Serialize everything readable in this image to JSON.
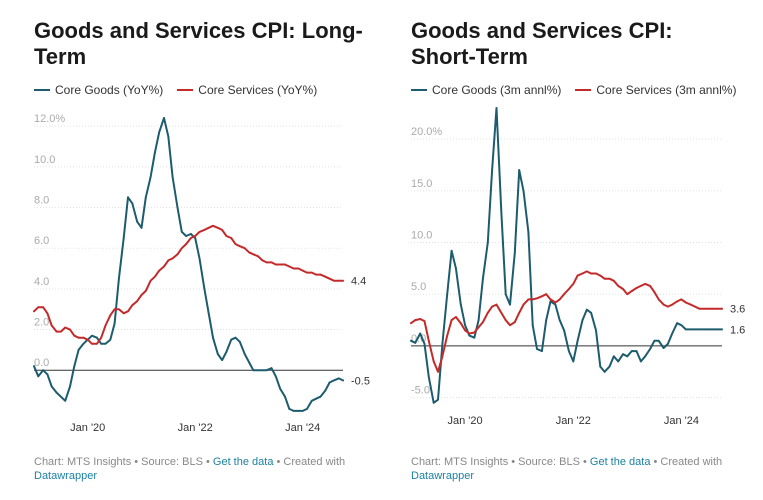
{
  "chart_data": [
    {
      "type": "line",
      "title": "Goods and Services CPI: Long-Term",
      "x": [
        2019.0,
        2019.08,
        2019.17,
        2019.25,
        2019.33,
        2019.42,
        2019.5,
        2019.58,
        2019.67,
        2019.75,
        2019.83,
        2019.92,
        2020.0,
        2020.08,
        2020.17,
        2020.25,
        2020.33,
        2020.42,
        2020.5,
        2020.58,
        2020.67,
        2020.75,
        2020.83,
        2020.92,
        2021.0,
        2021.08,
        2021.17,
        2021.25,
        2021.33,
        2021.42,
        2021.5,
        2021.58,
        2021.67,
        2021.75,
        2021.83,
        2021.92,
        2022.0,
        2022.08,
        2022.17,
        2022.25,
        2022.33,
        2022.42,
        2022.5,
        2022.58,
        2022.67,
        2022.75,
        2022.83,
        2022.92,
        2023.0,
        2023.08,
        2023.17,
        2023.25,
        2023.33,
        2023.42,
        2023.5,
        2023.58,
        2023.67,
        2023.75,
        2023.83,
        2023.92,
        2024.0,
        2024.08,
        2024.17,
        2024.25,
        2024.33,
        2024.42,
        2024.5,
        2024.58,
        2024.67,
        2024.75
      ],
      "series": [
        {
          "name": "Core Goods (YoY%)",
          "color": "#1d5c6e",
          "values": [
            0.2,
            -0.3,
            0.0,
            -0.2,
            -0.8,
            -1.1,
            -1.3,
            -1.5,
            -0.8,
            0.2,
            1.0,
            1.3,
            1.5,
            1.7,
            1.6,
            1.3,
            1.3,
            1.5,
            2.3,
            4.5,
            6.5,
            8.5,
            8.2,
            7.3,
            7.0,
            8.5,
            9.5,
            10.7,
            11.7,
            12.4,
            11.5,
            9.5,
            8.0,
            6.8,
            6.6,
            6.7,
            6.5,
            5.5,
            4.0,
            2.8,
            1.6,
            0.8,
            0.5,
            0.9,
            1.5,
            1.6,
            1.4,
            0.8,
            0.4,
            0.0,
            0.0,
            0.0,
            0.0,
            0.1,
            -0.3,
            -0.9,
            -1.3,
            -1.9,
            -2.0,
            -2.0,
            -2.0,
            -1.9,
            -1.5,
            -1.4,
            -1.3,
            -1.0,
            -0.6,
            -0.5,
            -0.4,
            -0.5
          ]
        },
        {
          "name": "Core Services (YoY%)",
          "color": "#c42a2a",
          "values": [
            2.9,
            3.1,
            3.1,
            2.8,
            2.2,
            1.9,
            1.9,
            2.1,
            2.0,
            1.7,
            1.6,
            1.6,
            1.5,
            1.3,
            1.3,
            1.6,
            2.2,
            2.7,
            3.0,
            3.0,
            2.8,
            2.9,
            3.2,
            3.4,
            3.7,
            3.9,
            4.4,
            4.6,
            4.9,
            5.1,
            5.4,
            5.5,
            5.7,
            6.0,
            6.2,
            6.5,
            6.6,
            6.8,
            6.9,
            7.0,
            7.1,
            7.0,
            6.9,
            6.6,
            6.5,
            6.2,
            6.1,
            6.0,
            5.8,
            5.7,
            5.6,
            5.4,
            5.3,
            5.3,
            5.2,
            5.2,
            5.2,
            5.1,
            5.0,
            5.0,
            4.9,
            4.8,
            4.8,
            4.7,
            4.7,
            4.6,
            4.5,
            4.4,
            4.4,
            4.4
          ]
        }
      ],
      "ylim": [
        -2.2,
        12.4
      ],
      "yticks": [
        0,
        2,
        4,
        6,
        8,
        10,
        12
      ],
      "ytick_labels": [
        "0.0",
        "2.0",
        "4.0",
        "6.0",
        "8.0",
        "10.0",
        "12.0%"
      ],
      "xticks": [
        2020,
        2022,
        2024
      ],
      "xtick_labels": [
        "Jan '20",
        "Jan '22",
        "Jan '24"
      ],
      "xlim": [
        2019.0,
        2024.75
      ],
      "end_labels": [
        "-0.5",
        "4.4"
      ],
      "grid": true
    },
    {
      "type": "line",
      "title": "Goods and Services CPI: Short-Term",
      "x": [
        2019.0,
        2019.08,
        2019.17,
        2019.25,
        2019.33,
        2019.42,
        2019.5,
        2019.58,
        2019.67,
        2019.75,
        2019.83,
        2019.92,
        2020.0,
        2020.08,
        2020.17,
        2020.25,
        2020.33,
        2020.42,
        2020.5,
        2020.58,
        2020.67,
        2020.75,
        2020.83,
        2020.92,
        2021.0,
        2021.08,
        2021.17,
        2021.25,
        2021.33,
        2021.42,
        2021.5,
        2021.58,
        2021.67,
        2021.75,
        2021.83,
        2021.92,
        2022.0,
        2022.08,
        2022.17,
        2022.25,
        2022.33,
        2022.42,
        2022.5,
        2022.58,
        2022.67,
        2022.75,
        2022.83,
        2022.92,
        2023.0,
        2023.08,
        2023.17,
        2023.25,
        2023.33,
        2023.42,
        2023.5,
        2023.58,
        2023.67,
        2023.75,
        2023.83,
        2023.92,
        2024.0,
        2024.08,
        2024.17,
        2024.25,
        2024.33,
        2024.42,
        2024.5,
        2024.58,
        2024.67,
        2024.75
      ],
      "series": [
        {
          "name": "Core Goods (3m annl%)",
          "color": "#1d5c6e",
          "values": [
            0.5,
            0.3,
            1.2,
            0.2,
            -3.0,
            -5.5,
            -5.2,
            0.2,
            5.0,
            9.2,
            7.5,
            4.0,
            2.0,
            1.0,
            0.8,
            2.5,
            6.5,
            10.0,
            17.0,
            23.0,
            13.0,
            5.0,
            4.0,
            9.0,
            17.0,
            15.0,
            11.0,
            2.0,
            -0.3,
            -0.5,
            2.5,
            4.3,
            4.0,
            2.5,
            1.5,
            -0.5,
            -1.5,
            0.5,
            2.5,
            3.5,
            3.2,
            1.5,
            -2.0,
            -2.5,
            -2.0,
            -1.0,
            -1.5,
            -0.8,
            -1.0,
            -0.5,
            -0.5,
            -1.5,
            -1.0,
            -0.3,
            0.5,
            0.5,
            -0.2,
            0.2,
            1.2,
            2.2,
            2.0,
            1.6,
            1.6,
            1.6,
            1.6,
            1.6,
            1.6,
            1.6,
            1.6,
            1.6
          ]
        },
        {
          "name": "Core Services (3m annl%)",
          "color": "#c42a2a",
          "values": [
            2.2,
            2.5,
            2.6,
            2.4,
            0.5,
            -1.5,
            -2.5,
            -1.0,
            1.0,
            2.5,
            2.8,
            2.2,
            1.5,
            1.2,
            1.3,
            1.8,
            2.3,
            3.2,
            3.8,
            4.0,
            3.2,
            2.5,
            2.0,
            2.3,
            3.2,
            4.0,
            4.5,
            4.5,
            4.6,
            4.8,
            5.0,
            4.5,
            4.2,
            4.5,
            5.0,
            5.5,
            6.0,
            6.8,
            7.0,
            7.2,
            7.0,
            7.0,
            6.8,
            6.5,
            6.5,
            6.3,
            5.8,
            5.5,
            5.0,
            5.3,
            5.6,
            5.8,
            6.0,
            5.8,
            5.2,
            4.5,
            4.0,
            3.8,
            4.0,
            4.3,
            4.5,
            4.2,
            4.0,
            3.8,
            3.6,
            3.6,
            3.6,
            3.6,
            3.6,
            3.6
          ]
        }
      ],
      "ylim": [
        -6.0,
        23.0
      ],
      "yticks": [
        -5,
        0,
        5,
        10,
        15,
        20
      ],
      "ytick_labels": [
        "-5.0",
        "0.0",
        "5.0",
        "10.0",
        "15.0",
        "20.0%"
      ],
      "xticks": [
        2020,
        2022,
        2024
      ],
      "xtick_labels": [
        "Jan '20",
        "Jan '22",
        "Jan '24"
      ],
      "xlim": [
        2019.0,
        2024.75
      ],
      "end_labels": [
        "1.6",
        "3.6"
      ],
      "grid": true
    }
  ],
  "footer": {
    "prefix": "Chart: MTS Insights • Source: BLS • ",
    "link1": "Get the data",
    "middle": " • Created with ",
    "link2": "Datawrapper"
  }
}
